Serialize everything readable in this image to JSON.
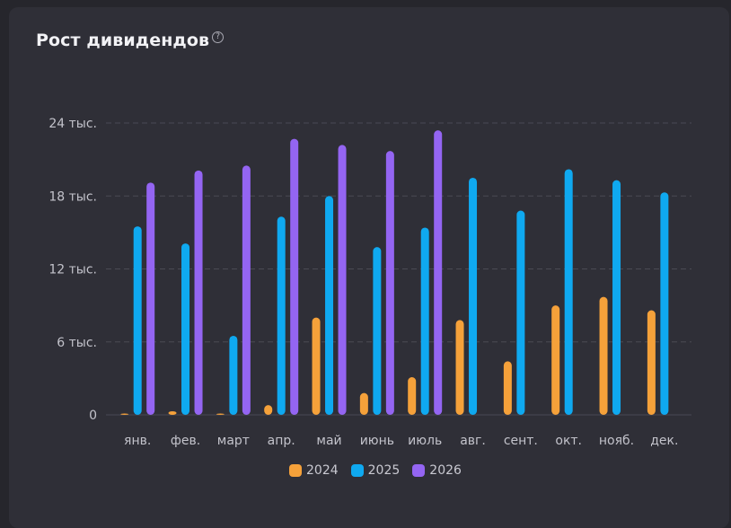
{
  "card": {
    "title": "Рост дивидендов",
    "help_icon": "question-circle-icon"
  },
  "colors": {
    "2024": "#f5a13a",
    "2025": "#0fa9f0",
    "2026": "#9465f2",
    "grid": "#4a4a54",
    "axis_text": "#c3c3cb"
  },
  "chart_data": {
    "type": "bar",
    "title": "Рост дивидендов",
    "categories": [
      "янв.",
      "фев.",
      "март",
      "апр.",
      "май",
      "июнь",
      "июль",
      "авг.",
      "сент.",
      "окт.",
      "нояб.",
      "дек."
    ],
    "ylim": [
      0,
      24000
    ],
    "yticks": [
      {
        "value": 0,
        "label": "0"
      },
      {
        "value": 6000,
        "label": "6 тыс."
      },
      {
        "value": 12000,
        "label": "12 тыс."
      },
      {
        "value": 18000,
        "label": "18 тыс."
      },
      {
        "value": 24000,
        "label": "24 тыс."
      }
    ],
    "grid": true,
    "legend_position": "bottom",
    "series": [
      {
        "name": "2024",
        "values": [
          100,
          300,
          50,
          800,
          8000,
          1800,
          3100,
          7800,
          4400,
          9000,
          9700,
          8600
        ]
      },
      {
        "name": "2025",
        "values": [
          15500,
          14100,
          6500,
          16300,
          18000,
          13800,
          15400,
          19500,
          16800,
          20200,
          19300,
          18300
        ]
      },
      {
        "name": "2026",
        "values": [
          19100,
          20100,
          20500,
          22700,
          22200,
          21700,
          23400,
          null,
          null,
          null,
          null,
          null
        ]
      }
    ]
  }
}
